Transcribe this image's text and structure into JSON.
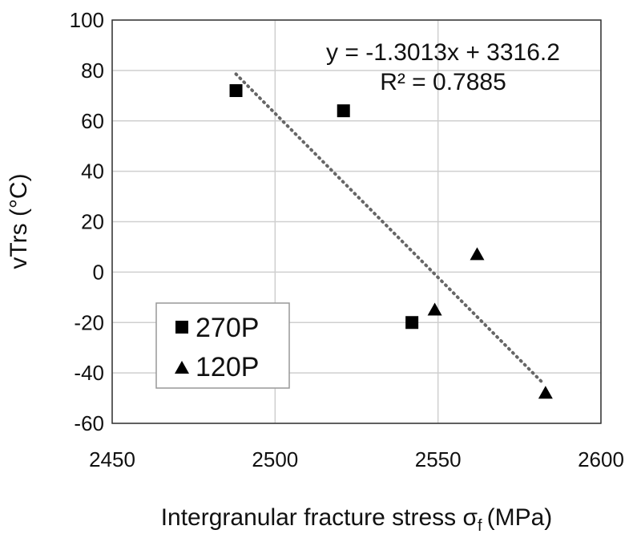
{
  "chart_data": {
    "type": "scatter",
    "xlabel": "Intergranular fracture stress σ",
    "xlabel_subscript": "f",
    "xlabel_unit": "(MPa)",
    "ylabel": "vTrs (°C)",
    "xlim": [
      2450,
      2600
    ],
    "ylim": [
      -60,
      100
    ],
    "xticks": [
      2450,
      2500,
      2550,
      2600
    ],
    "yticks": [
      -60,
      -40,
      -20,
      0,
      20,
      40,
      60,
      80,
      100
    ],
    "grid": true,
    "legend_position": "bottom-left",
    "series": [
      {
        "name": "270P",
        "marker": "square",
        "points": [
          {
            "x": 2488,
            "y": 72
          },
          {
            "x": 2521,
            "y": 64
          },
          {
            "x": 2542,
            "y": -20
          }
        ]
      },
      {
        "name": "120P",
        "marker": "triangle",
        "points": [
          {
            "x": 2549,
            "y": -15
          },
          {
            "x": 2562,
            "y": 7
          },
          {
            "x": 2583,
            "y": -48
          }
        ]
      }
    ],
    "trendline": {
      "style": "dotted",
      "color": "#666666",
      "x_range": [
        2488,
        2582
      ],
      "equation": "y = -1.3013x + 3316.2",
      "r_squared": "R² = 0.7885",
      "slope": -1.3013,
      "intercept": 3316.2
    }
  }
}
